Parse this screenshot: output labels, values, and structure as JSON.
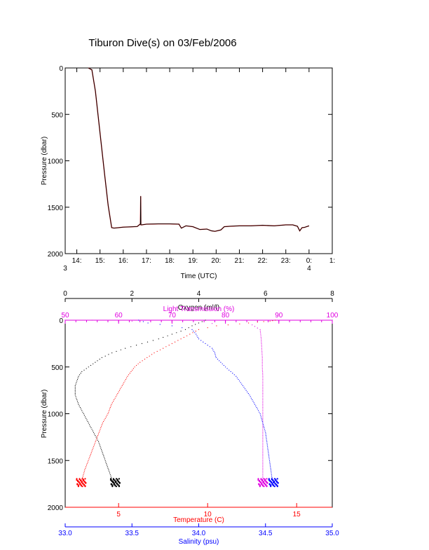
{
  "title": "Tiburon Dive(s) on 03/Feb/2006",
  "colors": {
    "axis": "#000000",
    "pressure_trace": "#000000",
    "pressure_trace_highlight": "#dd2222",
    "oxygen": "#000000",
    "light_transmission": "#e000e0",
    "temperature": "#ff0000",
    "salinity": "#0000ff"
  },
  "chart_data": [
    {
      "type": "line",
      "title": "Tiburon Dive(s) on 03/Feb/2006",
      "xlabel": "Time (UTC)",
      "ylabel": "Pressure (dbar)",
      "y_reversed": true,
      "ylim": [
        0,
        2000
      ],
      "yticks": [
        0,
        500,
        1000,
        1500,
        2000
      ],
      "xlim_hours": [
        13.5,
        25.0
      ],
      "xticks": [
        {
          "hour": 14,
          "label": "14:"
        },
        {
          "hour": 15,
          "label": "15:"
        },
        {
          "hour": 16,
          "label": "16:"
        },
        {
          "hour": 17,
          "label": "17:"
        },
        {
          "hour": 18,
          "label": "18:"
        },
        {
          "hour": 19,
          "label": "19:"
        },
        {
          "hour": 20,
          "label": "20:"
        },
        {
          "hour": 21,
          "label": "21:"
        },
        {
          "hour": 22,
          "label": "22:"
        },
        {
          "hour": 23,
          "label": "23:"
        },
        {
          "hour": 24,
          "label": "0:"
        },
        {
          "hour": 25,
          "label": "1:"
        }
      ],
      "day_labels": [
        {
          "hour": 13.5,
          "label": "3"
        },
        {
          "hour": 24,
          "label": "4"
        }
      ],
      "series": [
        {
          "x_hours": [
            14.5,
            14.65,
            14.8,
            15.0,
            15.2,
            15.35,
            15.5,
            15.6,
            15.8,
            16.0,
            16.3,
            16.6,
            16.74,
            16.75,
            16.76,
            16.8,
            17.0,
            17.5,
            18.0,
            18.4,
            18.5,
            18.7,
            19.0,
            19.3,
            19.6,
            19.8,
            19.95,
            20.2,
            20.35,
            20.6,
            21.0,
            21.5,
            22.0,
            22.5,
            23.0,
            23.3,
            23.5,
            23.6,
            23.7,
            23.8,
            24.0
          ],
          "pressure_dbar": [
            0,
            20,
            250,
            700,
            1150,
            1480,
            1720,
            1725,
            1720,
            1715,
            1712,
            1708,
            1680,
            1380,
            1690,
            1690,
            1682,
            1680,
            1680,
            1682,
            1725,
            1700,
            1710,
            1740,
            1735,
            1755,
            1760,
            1745,
            1710,
            1705,
            1700,
            1700,
            1695,
            1700,
            1690,
            1690,
            1705,
            1755,
            1720,
            1718,
            1700
          ]
        }
      ]
    },
    {
      "type": "scatter",
      "ylabel": "Pressure (dbar)",
      "y_reversed": true,
      "ylim": [
        0,
        2000
      ],
      "yticks": [
        0,
        500,
        1000,
        1500,
        2000
      ],
      "axes": {
        "oxygen": {
          "label": "Oxygen (ml/l)",
          "range": [
            0,
            8
          ],
          "ticks": [
            0,
            2,
            4,
            6,
            8
          ],
          "position": "top-outer"
        },
        "light_transmission": {
          "label": "Light Transmission (%)",
          "range": [
            50,
            100
          ],
          "ticks": [
            50,
            60,
            70,
            80,
            90,
            100
          ],
          "position": "top-inner"
        },
        "temperature": {
          "label": "Temperature (C)",
          "range": [
            2,
            17
          ],
          "ticks": [
            5,
            10,
            15
          ],
          "position": "bottom-inner"
        },
        "salinity": {
          "label": "Salinity (psu)",
          "range": [
            33.0,
            35.0
          ],
          "ticks": [
            "33.0",
            "33.5",
            "34.0",
            "34.5",
            "35.0"
          ],
          "position": "bottom-outer"
        }
      },
      "series": [
        {
          "axis": "oxygen",
          "pressure_dbar": [
            0,
            30,
            60,
            100,
            150,
            200,
            250,
            300,
            350,
            400,
            450,
            500,
            550,
            600,
            700,
            800,
            900,
            1000,
            1100,
            1200,
            1300,
            1400,
            1500,
            1600,
            1700,
            1750
          ],
          "values": [
            4.2,
            4.0,
            3.8,
            3.6,
            3.2,
            2.8,
            2.3,
            1.8,
            1.4,
            1.1,
            0.9,
            0.7,
            0.5,
            0.4,
            0.3,
            0.3,
            0.4,
            0.55,
            0.7,
            0.85,
            1.0,
            1.1,
            1.2,
            1.3,
            1.4,
            1.5
          ]
        },
        {
          "axis": "light_transmission",
          "pressure_dbar": [
            0,
            20,
            50,
            100,
            150,
            200,
            300,
            400,
            500,
            600,
            800,
            1000,
            1200,
            1400,
            1600,
            1700,
            1750
          ],
          "values": [
            55,
            70,
            85,
            86.5,
            86.6,
            86.7,
            86.8,
            86.9,
            86.9,
            87.0,
            87.0,
            87.0,
            87.0,
            87.0,
            87.0,
            87.0,
            87.0
          ]
        },
        {
          "axis": "temperature",
          "pressure_dbar": [
            0,
            10,
            20,
            40,
            60,
            100,
            150,
            200,
            250,
            300,
            350,
            400,
            450,
            500,
            600,
            700,
            800,
            900,
            1000,
            1100,
            1200,
            1300,
            1400,
            1500,
            1600,
            1700,
            1750
          ],
          "values": [
            13.8,
            13.5,
            12.8,
            11.8,
            10.5,
            9.5,
            9.0,
            8.5,
            8.0,
            7.5,
            7.0,
            6.6,
            6.2,
            5.9,
            5.5,
            5.2,
            4.9,
            4.6,
            4.4,
            4.1,
            3.9,
            3.7,
            3.5,
            3.3,
            3.1,
            2.95,
            2.9
          ]
        },
        {
          "axis": "salinity",
          "pressure_dbar": [
            0,
            30,
            60,
            100,
            150,
            200,
            250,
            300,
            350,
            400,
            500,
            600,
            700,
            800,
            900,
            1000,
            1100,
            1200,
            1300,
            1400,
            1500,
            1600,
            1700,
            1750
          ],
          "values": [
            33.55,
            33.62,
            33.8,
            33.95,
            33.98,
            34.0,
            34.05,
            34.1,
            34.12,
            34.13,
            34.2,
            34.28,
            34.33,
            34.38,
            34.42,
            34.46,
            34.48,
            34.5,
            34.51,
            34.52,
            34.53,
            34.54,
            34.55,
            34.56
          ]
        }
      ]
    }
  ]
}
